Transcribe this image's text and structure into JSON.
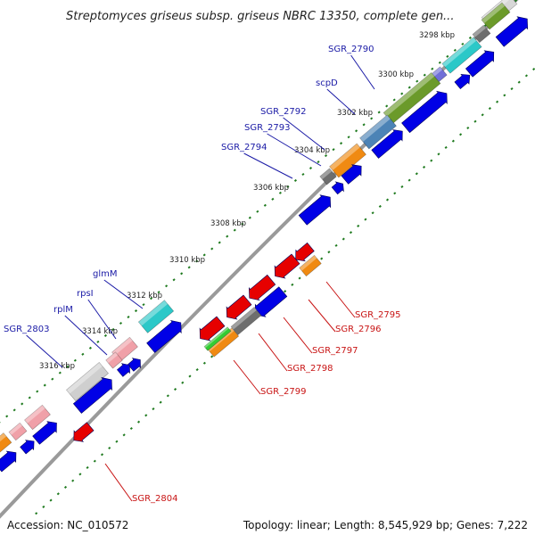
{
  "title": "Streptomyces griseus subsp. griseus NBRC 13350, complete gen...",
  "footer": {
    "accession": "Accession: NC_010572",
    "topology": "Topology: linear; Length: 8,545,929 bp; Genes: 7,222"
  },
  "ticks": [
    "3298 kbp",
    "3300 kbp",
    "3302 kbp",
    "3304 kbp",
    "3306 kbp",
    "3308 kbp",
    "3310 kbp",
    "3312 kbp",
    "3314 kbp",
    "3316 kbp"
  ],
  "forward_labels": [
    "SGR_2790",
    "scpD",
    "SGR_2792",
    "SGR_2793",
    "SGR_2794",
    "glmM",
    "rpsI",
    "rplM",
    "SGR_2803"
  ],
  "reverse_labels": [
    "SGR_2795",
    "SGR_2796",
    "SGR_2797",
    "SGR_2798",
    "SGR_2799",
    "SGR_2804"
  ],
  "colors": {
    "forward_label": "#1a1aa6",
    "reverse_label": "#c81414",
    "cds": "#0000e6",
    "reverse_feature": "#e60000",
    "tick_mark": "#1f7a1f",
    "backbone": "#888888"
  }
}
